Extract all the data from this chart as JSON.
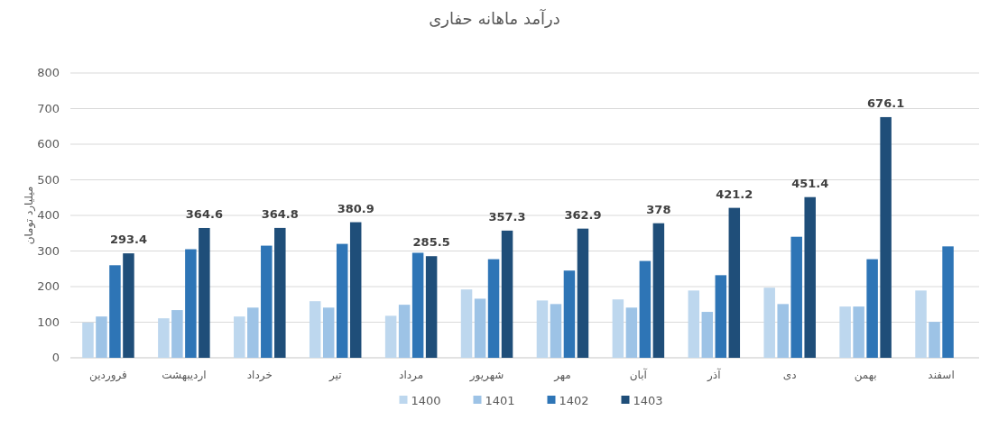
{
  "chart_data": {
    "type": "bar",
    "title": "درآمد ماهانه حفاری",
    "ylabel": "میلیارد تومان",
    "categories": [
      "فروردین",
      "اردیبهشت",
      "خرداد",
      "تیر",
      "مرداد",
      "شهریور",
      "مهر",
      "آبان",
      "آذر",
      "دی",
      "بهمن",
      "اسفند"
    ],
    "series": [
      {
        "name": "1400",
        "color": "#bdd7ee",
        "values": [
          99,
          111,
          116,
          159,
          118,
          192,
          161,
          164,
          189,
          197,
          144,
          189
        ]
      },
      {
        "name": "1401",
        "color": "#9dc3e6",
        "values": [
          116,
          134,
          141,
          141,
          149,
          166,
          151,
          141,
          129,
          151,
          144,
          101
        ]
      },
      {
        "name": "1402",
        "color": "#2e75b6",
        "values": [
          260,
          305,
          315,
          320,
          295,
          277,
          245,
          272,
          232,
          340,
          277,
          313
        ]
      },
      {
        "name": "1403",
        "color": "#1f4e79",
        "values": [
          293.4,
          364.6,
          364.8,
          380.9,
          285.5,
          357.3,
          362.9,
          378,
          421.2,
          451.4,
          676.1,
          null
        ],
        "value_labels": [
          "293.4",
          "364.6",
          "364.8",
          "380.9",
          "285.5",
          "357.3",
          "362.9",
          "378",
          "421.2",
          "451.4",
          "676.1",
          null
        ]
      }
    ],
    "ylim": [
      0,
      800
    ],
    "yticks": [
      0,
      100,
      200,
      300,
      400,
      500,
      600,
      700,
      800
    ],
    "grid": "y",
    "legend": "bottom"
  }
}
